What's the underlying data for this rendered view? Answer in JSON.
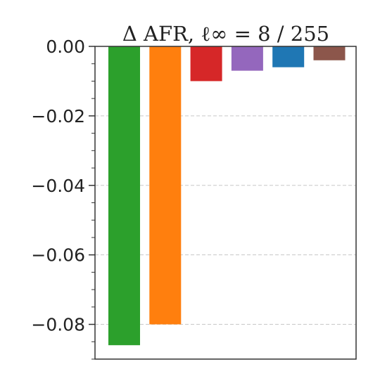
{
  "chart_data": {
    "type": "bar",
    "title": "Δ AFR, ℓ∞ = 8 / 255",
    "xlabel": "",
    "ylabel": "",
    "ylim": [
      -0.09,
      0.0
    ],
    "yticks": [
      0.0,
      -0.02,
      -0.04,
      -0.06,
      -0.08
    ],
    "ytick_labels": [
      "0.00",
      "−0.02",
      "−0.04",
      "−0.06",
      "−0.08"
    ],
    "minor_tick_step": 0.005,
    "grid": "horizontal dashed",
    "categories": [
      "",
      "",
      "",
      "",
      "",
      ""
    ],
    "values": [
      -0.086,
      -0.08,
      -0.01,
      -0.007,
      -0.006,
      -0.004
    ],
    "colors": [
      "#2ca02c",
      "#ff7f0e",
      "#d62728",
      "#9467bd",
      "#1f77b4",
      "#8c564b"
    ]
  }
}
